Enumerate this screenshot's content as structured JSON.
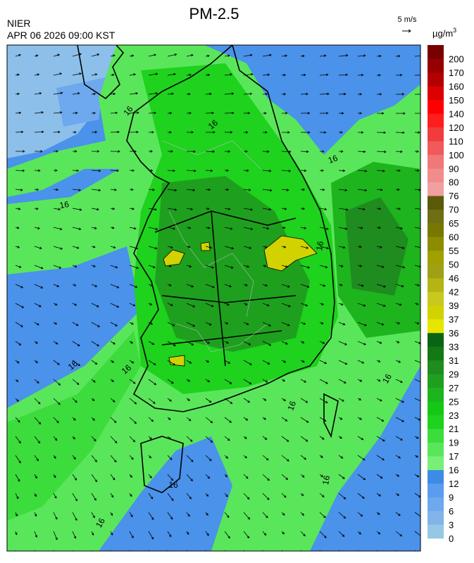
{
  "header": {
    "title": "PM-2.5",
    "agency": "NIER",
    "valid_time": "APR 06 2026 09:00 KST",
    "wind_reference": "5 m/s"
  },
  "legend": {
    "unit": "µg/m",
    "unit_superscript": "3",
    "levels": [
      "0",
      "3",
      "6",
      "9",
      "12",
      "16",
      "17",
      "19",
      "21",
      "23",
      "25",
      "27",
      "29",
      "31",
      "33",
      "36",
      "37",
      "39",
      "42",
      "46",
      "50",
      "55",
      "60",
      "65",
      "70",
      "76",
      "80",
      "90",
      "100",
      "110",
      "120",
      "140",
      "150",
      "160",
      "170",
      "200"
    ],
    "colors": [
      "#96c8e6",
      "#82b4ea",
      "#6ea8ee",
      "#5a9cf0",
      "#3c8ce6",
      "#78f078",
      "#5ae65a",
      "#3cdc3c",
      "#1ed21e",
      "#14c814",
      "#1eb41e",
      "#1ea01e",
      "#1e8c1e",
      "#147814",
      "#0a6414",
      "#e6e600",
      "#d2d200",
      "#c8c81e",
      "#b4b414",
      "#a0a014",
      "#a0a000",
      "#8c8c00",
      "#787800",
      "#6e6e14",
      "#5a5a0a",
      "#f0a0a0",
      "#f08c8c",
      "#f07878",
      "#f05a5a",
      "#f03c3c",
      "#ff1e1e",
      "#ff0000",
      "#dc0000",
      "#b40000",
      "#960000",
      "#780000"
    ]
  },
  "map": {
    "contour_labels": [
      "16",
      "16",
      "16",
      "16",
      "16",
      "16",
      "16",
      "16",
      "16",
      "16",
      "16",
      "16"
    ]
  }
}
